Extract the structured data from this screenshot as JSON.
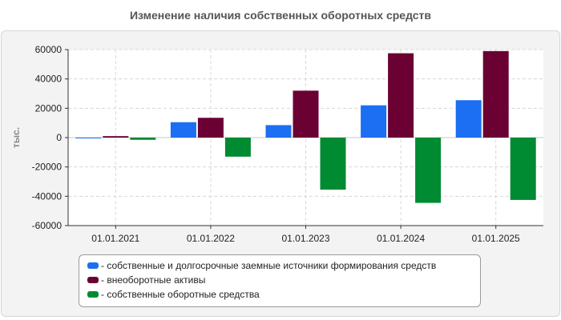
{
  "chart_data": {
    "type": "bar",
    "title": "Изменение наличия собственных оборотных средств",
    "xlabel": "",
    "ylabel": "тыс.",
    "categories": [
      "01.01.2021",
      "01.01.2022",
      "01.01.2023",
      "01.01.2024",
      "01.01.2025"
    ],
    "ylim": [
      -60000,
      60000
    ],
    "yticks": [
      60000,
      40000,
      20000,
      0,
      -20000,
      -40000,
      -60000
    ],
    "ytick_labels": [
      "60000",
      "40000",
      "20000",
      "0",
      "-20000",
      "-40000",
      "-60000"
    ],
    "grid": true,
    "legend_position": "bottom",
    "series": [
      {
        "name": "- собственные и долгосрочные заемные источники формирования средств",
        "color": "#1c6ef2",
        "values": [
          -500,
          10500,
          8500,
          22000,
          25500
        ]
      },
      {
        "name": "- внеоборотные активы",
        "color": "#6b0033",
        "values": [
          1000,
          13500,
          32000,
          57500,
          59000
        ]
      },
      {
        "name": "- собственные оборотные средства",
        "color": "#008a31",
        "values": [
          -1500,
          -13000,
          -35500,
          -44500,
          -42500
        ]
      }
    ]
  }
}
